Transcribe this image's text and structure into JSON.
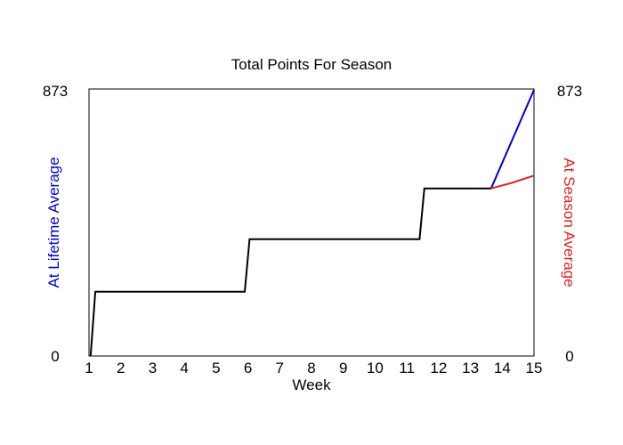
{
  "chart_data": {
    "type": "line",
    "title": "Total Points For Season",
    "xlabel": "Week",
    "ylabel_left": "At Lifetime Average",
    "ylabel_right": "At Season Average",
    "xlim": [
      1,
      15
    ],
    "ylim": [
      0,
      873
    ],
    "x_ticks": [
      "1",
      "2",
      "3",
      "4",
      "5",
      "6",
      "7",
      "8",
      "9",
      "10",
      "11",
      "12",
      "13",
      "14",
      "15"
    ],
    "y_ticks_left": [
      "0",
      "873"
    ],
    "y_ticks_right": [
      "0",
      "873"
    ],
    "grid": false,
    "colors": {
      "actual": "#000000",
      "lifetime": "#0000cc",
      "season": "#dd2222"
    },
    "series": [
      {
        "key": "actual",
        "points": [
          [
            1.05,
            0
          ],
          [
            1.2,
            210
          ],
          [
            5.9,
            210
          ],
          [
            6.05,
            382
          ],
          [
            11.4,
            382
          ],
          [
            11.55,
            548
          ],
          [
            13.65,
            548
          ]
        ]
      },
      {
        "key": "lifetime",
        "points": [
          [
            13.65,
            548
          ],
          [
            15,
            870
          ]
        ]
      },
      {
        "key": "season",
        "points": [
          [
            13.65,
            548
          ],
          [
            14.3,
            566
          ],
          [
            15,
            590
          ]
        ]
      }
    ]
  }
}
